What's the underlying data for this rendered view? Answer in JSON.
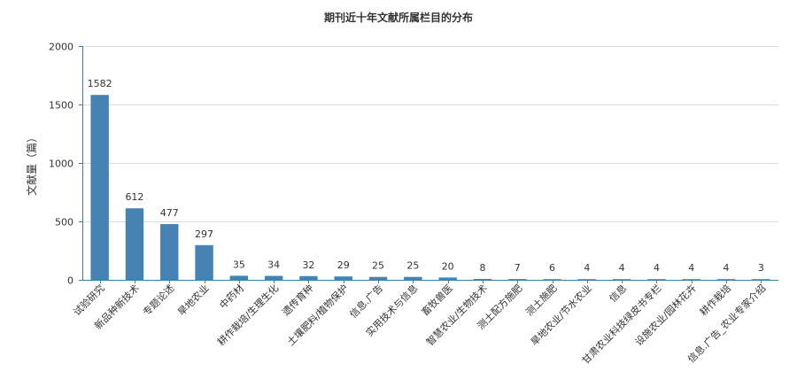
{
  "chart_data": {
    "type": "bar",
    "title": "期刊近十年文献所属栏目的分布",
    "xlabel": "",
    "ylabel": "文献量（篇）",
    "ylim": [
      0,
      2000
    ],
    "yticks": [
      0,
      500,
      1000,
      1500,
      2000
    ],
    "grid": true,
    "bar_color": "#4682b4",
    "categories": [
      "试验研究",
      "新品种新技术",
      "专题论述",
      "旱地农业",
      "中药材",
      "耕作栽培/生理生化",
      "遗传育种",
      "土壤肥料/植物保护",
      "信息.广告",
      "实用技术与信息",
      "畜牧兽医",
      "智慧农业/生物技术",
      "测土配方施肥",
      "测土施肥",
      "旱地农业/节水农业",
      "信息",
      "甘肃农业科技绿皮书专栏",
      "设施农业/园林花卉",
      "耕作栽培",
      "信息.广告_农业专家介绍"
    ],
    "values": [
      1582,
      612,
      477,
      297,
      35,
      34,
      32,
      29,
      25,
      25,
      20,
      8,
      7,
      6,
      4,
      4,
      4,
      4,
      4,
      3
    ]
  }
}
